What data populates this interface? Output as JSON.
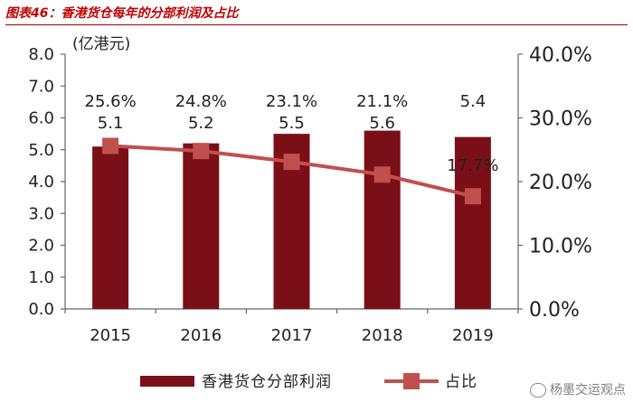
{
  "figure_title": "图表46：香港货仓每年的分部利润及占比",
  "watermark": "杨墨交运观点",
  "chart_data": {
    "type": "bar",
    "categories": [
      "2015",
      "2016",
      "2017",
      "2018",
      "2019"
    ],
    "series": [
      {
        "name": "香港货仓分部利润",
        "type": "bar",
        "axis": "left",
        "color": "#7b0f17",
        "values": [
          5.1,
          5.2,
          5.5,
          5.6,
          5.4
        ],
        "labels": [
          "5.1",
          "5.2",
          "5.5",
          "5.6",
          "5.4"
        ]
      },
      {
        "name": "占比",
        "type": "line",
        "axis": "right",
        "color": "#c0504d",
        "values": [
          25.6,
          24.8,
          23.1,
          21.1,
          17.7
        ],
        "labels": [
          "25.6%",
          "24.8%",
          "23.1%",
          "21.1%",
          "17.7%"
        ]
      }
    ],
    "ylabel": "(亿港元)",
    "ylim": [
      0,
      8
    ],
    "yticks": [
      "0.0",
      "1.0",
      "2.0",
      "3.0",
      "4.0",
      "5.0",
      "6.0",
      "7.0",
      "8.0"
    ],
    "y2lim": [
      0,
      40
    ],
    "y2ticks": [
      "0.0%",
      "10.0%",
      "20.0%",
      "30.0%",
      "40.0%"
    ],
    "grid": false,
    "legend": "bottom"
  }
}
